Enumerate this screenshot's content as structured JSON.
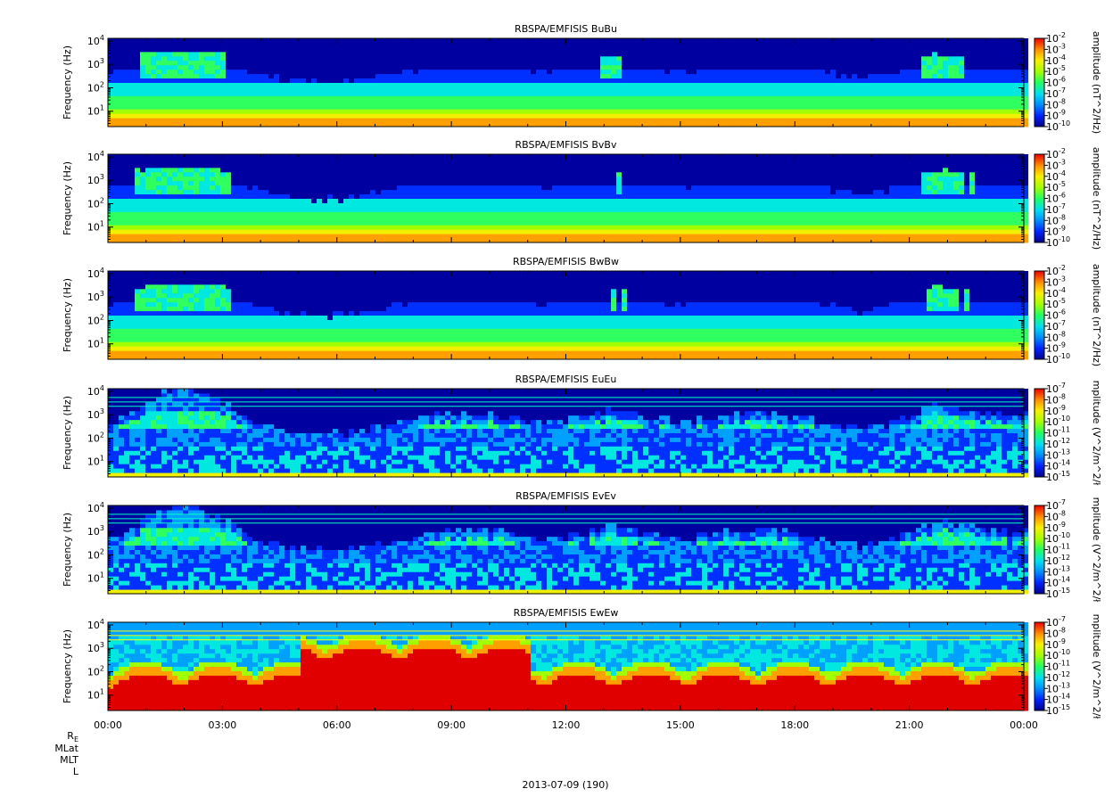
{
  "chart_data": [
    {
      "type": "heatmap",
      "title": "RBSPA/EMFISIS  BuBu",
      "ylabel": "Frequency (Hz)",
      "yscale": "log",
      "y_ticks": [
        {
          "base": "10",
          "exp": "1"
        },
        {
          "base": "10",
          "exp": "2"
        },
        {
          "base": "10",
          "exp": "3"
        },
        {
          "base": "10",
          "exp": "4"
        }
      ],
      "colorbar_label": "amplitude (nT^2/Hz)",
      "colorbar_ticks": [
        {
          "base": "10",
          "exp": "-2"
        },
        {
          "base": "10",
          "exp": "-3"
        },
        {
          "base": "10",
          "exp": "-4"
        },
        {
          "base": "10",
          "exp": "-5"
        },
        {
          "base": "10",
          "exp": "-6"
        },
        {
          "base": "10",
          "exp": "-7"
        },
        {
          "base": "10",
          "exp": "-8"
        },
        {
          "base": "10",
          "exp": "-9"
        },
        {
          "base": "10",
          "exp": "-10"
        }
      ],
      "colorbar_range": [
        -10,
        -2
      ]
    },
    {
      "type": "heatmap",
      "title": "RBSPA/EMFISIS  BvBv",
      "ylabel": "Frequency (Hz)",
      "yscale": "log",
      "y_ticks": [
        {
          "base": "10",
          "exp": "1"
        },
        {
          "base": "10",
          "exp": "2"
        },
        {
          "base": "10",
          "exp": "3"
        },
        {
          "base": "10",
          "exp": "4"
        }
      ],
      "colorbar_label": "amplitude (nT^2/Hz)",
      "colorbar_ticks": [
        {
          "base": "10",
          "exp": "-2"
        },
        {
          "base": "10",
          "exp": "-3"
        },
        {
          "base": "10",
          "exp": "-4"
        },
        {
          "base": "10",
          "exp": "-5"
        },
        {
          "base": "10",
          "exp": "-6"
        },
        {
          "base": "10",
          "exp": "-7"
        },
        {
          "base": "10",
          "exp": "-8"
        },
        {
          "base": "10",
          "exp": "-9"
        },
        {
          "base": "10",
          "exp": "-10"
        }
      ],
      "colorbar_range": [
        -10,
        -2
      ]
    },
    {
      "type": "heatmap",
      "title": "RBSPA/EMFISIS  BwBw",
      "ylabel": "Frequency (Hz)",
      "yscale": "log",
      "y_ticks": [
        {
          "base": "10",
          "exp": "1"
        },
        {
          "base": "10",
          "exp": "2"
        },
        {
          "base": "10",
          "exp": "3"
        },
        {
          "base": "10",
          "exp": "4"
        }
      ],
      "colorbar_label": "amplitude (nT^2/Hz)",
      "colorbar_ticks": [
        {
          "base": "10",
          "exp": "-2"
        },
        {
          "base": "10",
          "exp": "-3"
        },
        {
          "base": "10",
          "exp": "-4"
        },
        {
          "base": "10",
          "exp": "-5"
        },
        {
          "base": "10",
          "exp": "-6"
        },
        {
          "base": "10",
          "exp": "-7"
        },
        {
          "base": "10",
          "exp": "-8"
        },
        {
          "base": "10",
          "exp": "-9"
        },
        {
          "base": "10",
          "exp": "-10"
        }
      ],
      "colorbar_range": [
        -10,
        -2
      ]
    },
    {
      "type": "heatmap",
      "title": "RBSPA/EMFISIS  EuEu",
      "ylabel": "Frequency (Hz)",
      "yscale": "log",
      "y_ticks": [
        {
          "base": "10",
          "exp": "1"
        },
        {
          "base": "10",
          "exp": "2"
        },
        {
          "base": "10",
          "exp": "3"
        },
        {
          "base": "10",
          "exp": "4"
        }
      ],
      "colorbar_label": "mplitude (V^2/m^2/ł",
      "colorbar_ticks": [
        {
          "base": "10",
          "exp": "-7"
        },
        {
          "base": "10",
          "exp": "-8"
        },
        {
          "base": "10",
          "exp": "-9"
        },
        {
          "base": "10",
          "exp": "-10"
        },
        {
          "base": "10",
          "exp": "-11"
        },
        {
          "base": "10",
          "exp": "-12"
        },
        {
          "base": "10",
          "exp": "-13"
        },
        {
          "base": "10",
          "exp": "-14"
        },
        {
          "base": "10",
          "exp": "-15"
        }
      ],
      "colorbar_range": [
        -15,
        -7
      ]
    },
    {
      "type": "heatmap",
      "title": "RBSPA/EMFISIS  EvEv",
      "ylabel": "Frequency (Hz)",
      "yscale": "log",
      "y_ticks": [
        {
          "base": "10",
          "exp": "1"
        },
        {
          "base": "10",
          "exp": "2"
        },
        {
          "base": "10",
          "exp": "3"
        },
        {
          "base": "10",
          "exp": "4"
        }
      ],
      "colorbar_label": "mplitude (V^2/m^2/ł",
      "colorbar_ticks": [
        {
          "base": "10",
          "exp": "-7"
        },
        {
          "base": "10",
          "exp": "-8"
        },
        {
          "base": "10",
          "exp": "-9"
        },
        {
          "base": "10",
          "exp": "-10"
        },
        {
          "base": "10",
          "exp": "-11"
        },
        {
          "base": "10",
          "exp": "-12"
        },
        {
          "base": "10",
          "exp": "-13"
        },
        {
          "base": "10",
          "exp": "-14"
        },
        {
          "base": "10",
          "exp": "-15"
        }
      ],
      "colorbar_range": [
        -15,
        -7
      ]
    },
    {
      "type": "heatmap",
      "title": "RBSPA/EMFISIS  EwEw",
      "ylabel": "Frequency (Hz)",
      "yscale": "log",
      "y_ticks": [
        {
          "base": "10",
          "exp": "1"
        },
        {
          "base": "10",
          "exp": "2"
        },
        {
          "base": "10",
          "exp": "3"
        },
        {
          "base": "10",
          "exp": "4"
        }
      ],
      "colorbar_label": "mplitude (V^2/m^2/ł",
      "colorbar_ticks": [
        {
          "base": "10",
          "exp": "-7"
        },
        {
          "base": "10",
          "exp": "-8"
        },
        {
          "base": "10",
          "exp": "-9"
        },
        {
          "base": "10",
          "exp": "-10"
        },
        {
          "base": "10",
          "exp": "-11"
        },
        {
          "base": "10",
          "exp": "-12"
        },
        {
          "base": "10",
          "exp": "-13"
        },
        {
          "base": "10",
          "exp": "-14"
        },
        {
          "base": "10",
          "exp": "-15"
        }
      ],
      "colorbar_range": [
        -15,
        -7
      ]
    }
  ],
  "x_axis": {
    "tick_labels": [
      "00:00",
      "03:00",
      "06:00",
      "09:00",
      "12:00",
      "15:00",
      "18:00",
      "21:00",
      "00:00"
    ],
    "date_label": "2013-07-09 (190)"
  },
  "ephemeris_labels": {
    "re": {
      "main": "R",
      "sub": "E"
    },
    "mlat": "MLat",
    "mlt": "MLT",
    "l": "L"
  },
  "colors": {
    "colormap": [
      "#0000a0",
      "#0030ff",
      "#00a0ff",
      "#00e8e0",
      "#30ff60",
      "#a0ff00",
      "#f0f000",
      "#ffa000",
      "#ff3000",
      "#e00000"
    ],
    "background_no_data": "#000000"
  }
}
